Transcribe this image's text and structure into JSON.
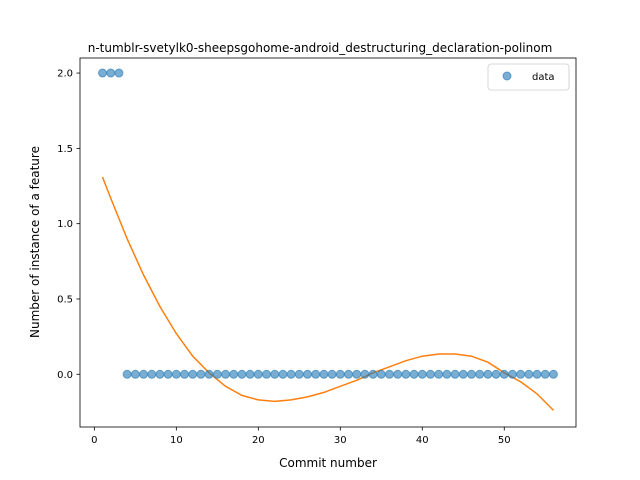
{
  "chart_data": {
    "type": "scatter",
    "title": "n-tumblr-svetylk0-sheepsgohome-android_destructuring_declaration-polinom",
    "xlabel": "Commit number",
    "ylabel": "Number of instance of a feature",
    "xlim": [
      -1.75,
      58.75
    ],
    "ylim": [
      -0.35,
      2.1
    ],
    "xticks": [
      0,
      10,
      20,
      30,
      40,
      50
    ],
    "yticks": [
      0.0,
      0.5,
      1.0,
      1.5,
      2.0
    ],
    "ytick_labels": [
      "0.0",
      "0.5",
      "1.0",
      "1.5",
      "2.0"
    ],
    "legend": {
      "placement": "top-right",
      "entries": [
        "data"
      ]
    },
    "grid": false,
    "series": [
      {
        "name": "data",
        "kind": "scatter",
        "color": "#1f77b4",
        "x": [
          1,
          2,
          3,
          4,
          5,
          6,
          7,
          8,
          9,
          10,
          11,
          12,
          13,
          14,
          15,
          16,
          17,
          18,
          19,
          20,
          21,
          22,
          23,
          24,
          25,
          26,
          27,
          28,
          29,
          30,
          31,
          32,
          33,
          34,
          35,
          36,
          37,
          38,
          39,
          40,
          41,
          42,
          43,
          44,
          45,
          46,
          47,
          48,
          49,
          50,
          51,
          52,
          53,
          54,
          55,
          56
        ],
        "y": [
          2,
          2,
          2,
          0,
          0,
          0,
          0,
          0,
          0,
          0,
          0,
          0,
          0,
          0,
          0,
          0,
          0,
          0,
          0,
          0,
          0,
          0,
          0,
          0,
          0,
          0,
          0,
          0,
          0,
          0,
          0,
          0,
          0,
          0,
          0,
          0,
          0,
          0,
          0,
          0,
          0,
          0,
          0,
          0,
          0,
          0,
          0,
          0,
          0,
          0,
          0,
          0,
          0,
          0,
          0,
          0
        ]
      },
      {
        "kind": "line",
        "color": "#ff7f0e",
        "x": [
          1,
          2,
          4,
          6,
          8,
          10,
          12,
          14,
          16,
          18,
          20,
          22,
          24,
          26,
          28,
          30,
          32,
          34,
          36,
          38,
          40,
          42,
          44,
          46,
          48,
          50,
          52,
          54,
          56
        ],
        "y": [
          1.31,
          1.17,
          0.9,
          0.66,
          0.45,
          0.27,
          0.12,
          0.01,
          -0.08,
          -0.14,
          -0.17,
          -0.18,
          -0.17,
          -0.15,
          -0.12,
          -0.08,
          -0.04,
          0.01,
          0.05,
          0.09,
          0.12,
          0.135,
          0.135,
          0.12,
          0.08,
          0.01,
          -0.05,
          -0.13,
          -0.24
        ]
      }
    ]
  }
}
